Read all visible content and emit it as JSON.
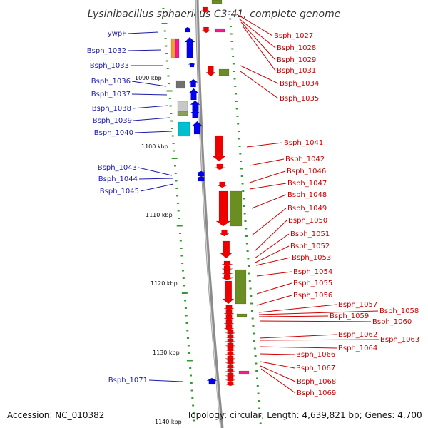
{
  "title": "Lysinibacillus sphaericus C3-41, complete genome",
  "accession_label": "Accession:",
  "accession": "NC_010382",
  "footer_stats": "Topology: circular; Length: 4,639,821 bp; Genes: 4,700",
  "colors": {
    "backbone": "#8c8c8c",
    "minus_strand": "#ee0000",
    "plus_strand": "#0000ee",
    "green": "#6b8e23",
    "orange": "#f0a030",
    "magenta": "#ff1493",
    "gray": "#707070",
    "lightgray": "#c8c8c8",
    "cyan": "#00c0d0",
    "label_left": "#1a1aa8",
    "label_right": "#cc0000",
    "tick": "#339933"
  },
  "ruler_labels": [
    "1090 kbp",
    "1100 kbp",
    "1110 kbp",
    "1120 kbp",
    "1130 kbp",
    "1140 kbp"
  ],
  "left_genes": [
    "ywpF",
    "Bsph_1032",
    "Bsph_1033",
    "Bsph_1036",
    "Bsph_1037",
    "Bsph_1038",
    "Bsph_1039",
    "Bsph_1040",
    "Bsph_1043",
    "Bsph_1044",
    "Bsph_1045",
    "Bsph_1071"
  ],
  "right_genes": [
    "Bsph_1027",
    "Bsph_1028",
    "Bsph_1029",
    "Bsph_1031",
    "Bsph_1034",
    "Bsph_1035",
    "Bsph_1041",
    "Bsph_1042",
    "Bsph_1046",
    "Bsph_1047",
    "Bsph_1048",
    "Bsph_1049",
    "Bsph_1050",
    "Bsph_1051",
    "Bsph_1052",
    "Bsph_1053",
    "Bsph_1054",
    "Bsph_1055",
    "Bsph_1056",
    "Bsph_1057",
    "Bsph_1058",
    "Bsph_1059",
    "Bsph_1060",
    "Bsph_1062",
    "Bsph_1063",
    "Bsph_1064",
    "Bsph_1066",
    "Bsph_1067",
    "Bsph_1068",
    "Bsph_1069"
  ]
}
